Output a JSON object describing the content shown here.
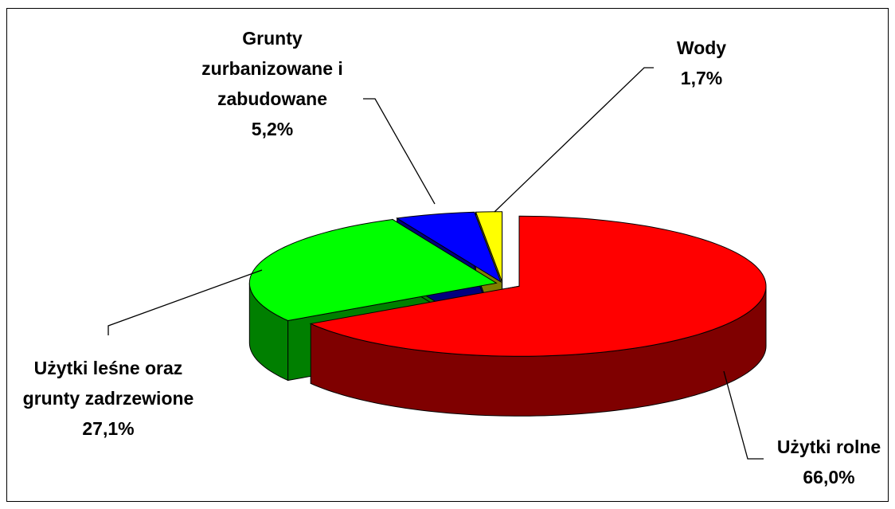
{
  "chart_data": {
    "type": "pie",
    "categories": [
      "Użytki rolne",
      "Użytki leśne oraz grunty zadrzewione",
      "Grunty zurbanizowane i zabudowane",
      "Wody"
    ],
    "values": [
      66.0,
      27.1,
      5.2,
      1.7
    ],
    "value_labels": [
      "66,0%",
      "27,1%",
      "5,2%",
      "1,7%"
    ],
    "colors": [
      "#ff0000",
      "#00ff00",
      "#0000ff",
      "#ffff00"
    ]
  }
}
